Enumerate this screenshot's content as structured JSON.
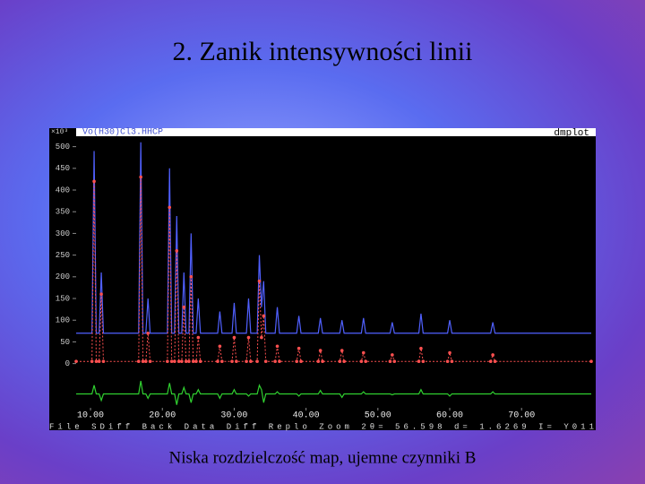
{
  "slide_title": "2. Zanik intensywności linii",
  "caption": "Niska rozdzielczość map, ujemne czynniki B",
  "chart_data": {
    "type": "line",
    "title": "Vo(H30)Cl3.HHCP",
    "program": "dmplot",
    "y_unit": "×10³",
    "status": "File SDiff Back Data Diff Replo Zoom 2θ= 56.598 d= 1.6269 I= Y011",
    "x": [
      8,
      10.2,
      10.5,
      10.8,
      11.2,
      11.5,
      11.8,
      16.7,
      17,
      17.3,
      17.7,
      18,
      18.3,
      20.7,
      21,
      21.3,
      21.7,
      22,
      22.3,
      22.7,
      23,
      23.3,
      23.7,
      24,
      24.3,
      24.7,
      25,
      25.3,
      27.7,
      28,
      28.3,
      29.7,
      30,
      30.3,
      31.7,
      32,
      32.3,
      33.2,
      33.5,
      33.8,
      34.1,
      34.4,
      35.7,
      36,
      36.3,
      38.7,
      39,
      39.3,
      41.7,
      42,
      42.3,
      44.7,
      45,
      45.3,
      47.7,
      48,
      48.3,
      51.7,
      52,
      52.3,
      55.7,
      56,
      56.3,
      59.7,
      60,
      60.3,
      65.7,
      66,
      66.3,
      79.7
    ],
    "series": [
      {
        "color": "#5060ff",
        "style": "line",
        "values": [
          70,
          70,
          490,
          70,
          70,
          210,
          70,
          70,
          510,
          70,
          70,
          150,
          70,
          70,
          450,
          70,
          70,
          340,
          70,
          70,
          210,
          70,
          70,
          300,
          70,
          70,
          150,
          70,
          70,
          120,
          70,
          70,
          140,
          70,
          70,
          150,
          70,
          70,
          250,
          130,
          190,
          70,
          70,
          130,
          70,
          70,
          110,
          70,
          70,
          105,
          70,
          70,
          100,
          70,
          70,
          105,
          70,
          70,
          95,
          70,
          70,
          115,
          70,
          70,
          100,
          70,
          70,
          95,
          70,
          70
        ]
      },
      {
        "color": "#ff5050",
        "style": "dots",
        "values": [
          5,
          5,
          420,
          5,
          5,
          160,
          5,
          5,
          430,
          5,
          5,
          70,
          5,
          5,
          360,
          5,
          5,
          260,
          5,
          5,
          130,
          5,
          5,
          200,
          5,
          5,
          60,
          5,
          5,
          40,
          5,
          5,
          60,
          5,
          5,
          60,
          5,
          5,
          190,
          60,
          110,
          5,
          5,
          40,
          5,
          5,
          35,
          5,
          5,
          30,
          5,
          5,
          30,
          5,
          5,
          25,
          5,
          5,
          20,
          5,
          5,
          35,
          5,
          5,
          25,
          5,
          5,
          20,
          5,
          5
        ]
      },
      {
        "color": "#30d030",
        "style": "line",
        "values": [
          -70,
          -70,
          -50,
          -70,
          -70,
          -85,
          -70,
          -70,
          -40,
          -70,
          -70,
          -80,
          -70,
          -70,
          -45,
          -70,
          -70,
          -95,
          -70,
          -70,
          -55,
          -70,
          -70,
          -90,
          -70,
          -70,
          -60,
          -70,
          -70,
          -80,
          -70,
          -70,
          -60,
          -70,
          -70,
          -75,
          -70,
          -70,
          -50,
          -60,
          -90,
          -70,
          -70,
          -65,
          -70,
          -70,
          -75,
          -70,
          -70,
          -62,
          -70,
          -70,
          -78,
          -70,
          -70,
          -65,
          -70,
          -70,
          -72,
          -70,
          -70,
          -60,
          -70,
          -70,
          -75,
          -70,
          -70,
          -65,
          -70,
          -70
        ]
      }
    ],
    "xlim": [
      8,
      79.7
    ],
    "ylim": [
      -102,
      524
    ],
    "xticks": [
      {
        "value": 10,
        "label": "10.00"
      },
      {
        "value": 20,
        "label": "20.00"
      },
      {
        "value": 30,
        "label": "30.00"
      },
      {
        "value": 40,
        "label": "40.00"
      },
      {
        "value": 50,
        "label": "50.00"
      },
      {
        "value": 60,
        "label": "60.00"
      },
      {
        "value": 70,
        "label": "70.00"
      }
    ],
    "yticks": [
      0,
      50,
      100,
      150,
      200,
      250,
      300,
      350,
      400,
      450,
      500
    ],
    "grid": false
  }
}
